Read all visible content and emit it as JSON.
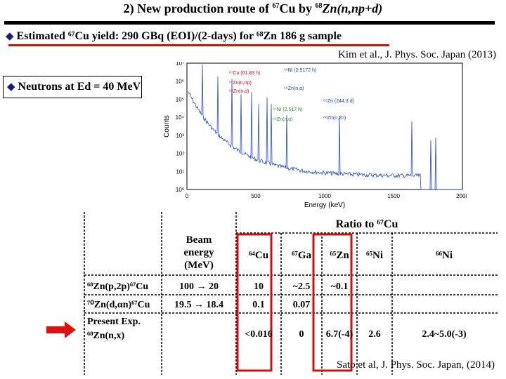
{
  "slide": {
    "title_prefix": "2) New production route of ",
    "title_cu_mass": "67",
    "title_mid": "Cu by ",
    "title_zn_mass": "68",
    "title_suffix": "Zn(n,np+d)",
    "yield_bullet": "Estimated ⁶⁷Cu yield: 290 GBq (EOI)/(2-days) for ⁶⁸Zn 186 g sample",
    "citation_top": "Kim et al., J. Phys. Soc. Japan (2013)",
    "neutron_bullet": "Neutrons at Ed = 40 MeV",
    "citation_bottom": "Sato et al, J. Phys. Soc. Japan, (2014)"
  },
  "spectrum": {
    "ylabel": "Counts",
    "xlabel": "Energy (keV)",
    "x_ticks": [
      "0",
      "500",
      "1000",
      "1500",
      "2000"
    ],
    "y_ticks": [
      "10⁰",
      "10¹",
      "10²",
      "10³",
      "10⁴",
      "10⁵",
      "10⁶",
      "10⁷"
    ],
    "legend": [
      {
        "text": "⁶⁷Cu (61.83 h)",
        "color": "#d01010"
      },
      {
        "text": "⁶⁷Zn(n,np)",
        "color": "#d01010"
      },
      {
        "text": "⁶⁸Zn(n,d)",
        "color": "#d01010"
      },
      {
        "text": "⁵⁶Ni (2.5172 h)",
        "color": "#1a3ab0"
      },
      {
        "text": "⁶⁶Zn(n,α)",
        "color": "#1a3ab0"
      },
      {
        "text": "⁶⁵Zn (244.3 d)",
        "color": "#1a3ab0"
      },
      {
        "text": "⁶⁶Zn(n,2n)",
        "color": "#1a3ab0"
      },
      {
        "text": "⁶⁵Ni (2.517 h)",
        "color": "#2a8a2a"
      },
      {
        "text": "⁶⁸Zn(n,α)",
        "color": "#2a8a2a"
      }
    ]
  },
  "table": {
    "ratio_header": "Ratio to ⁶⁷Cu",
    "beam_header": "Beam energy (MeV)",
    "columns": [
      "⁶⁴Cu",
      "⁶⁷Ga",
      "⁶⁵Zn",
      "⁶⁵Ni",
      "⁶⁶Ni"
    ],
    "rows": [
      {
        "label": "⁶⁸Zn(p,2p)⁶⁷Cu",
        "beam": "100 → 20",
        "values": [
          "10",
          "~2.5",
          "~0.1",
          "",
          ""
        ]
      },
      {
        "label": "⁷⁰Zn(d,αn)⁶⁷Cu",
        "beam": "19.5 → 18.4",
        "values": [
          "0.1",
          "0.07",
          "",
          "",
          ""
        ]
      },
      {
        "label_line1": "Present Exp.",
        "label_line2": "⁶⁸Zn(n,x)",
        "beam": "",
        "values": [
          "<0.016",
          "0",
          "6.7(-4)",
          "2.6",
          "2.4~5.0(-3)"
        ]
      }
    ]
  }
}
